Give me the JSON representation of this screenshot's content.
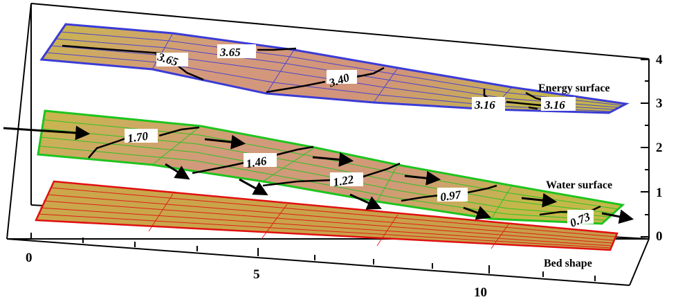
{
  "x_axis": {
    "ticks": [
      "0",
      "5",
      "10"
    ]
  },
  "z_axis": {
    "ticks": [
      "0",
      "1",
      "2",
      "3",
      "4"
    ]
  },
  "surfaces": {
    "energy": {
      "label": "Energy surface",
      "edge_color": "#3b3bd6",
      "contours": [
        "3.65",
        "3.65",
        "3.40",
        "3.16",
        "3.16"
      ]
    },
    "water": {
      "label": "Water surface",
      "edge_color": "#1ec41e",
      "contours": [
        "1.70",
        "1.46",
        "1.22",
        "0.97",
        "0.73"
      ]
    },
    "bed": {
      "label": "Bed shape",
      "edge_color": "#e01010"
    }
  },
  "colors": {
    "fill_high": "#d4907a",
    "fill_low": "#c8b84a",
    "bed_fill": "#c8a84a",
    "arrow": "#000000"
  }
}
